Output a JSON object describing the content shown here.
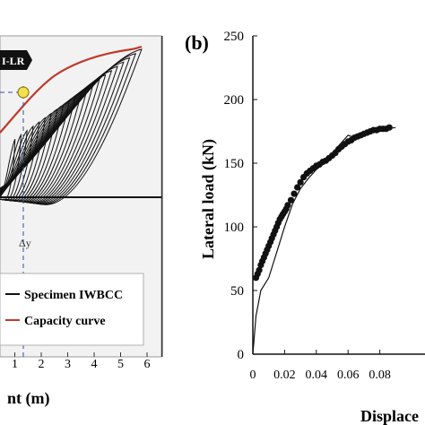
{
  "panel_a": {
    "badge": "I-LR",
    "delta_label": "Δy",
    "x_ticks": [
      "1",
      "2",
      "3",
      "4",
      "5",
      "6"
    ],
    "x_label_fragment": "nt (m)",
    "legend": [
      "Specimen IWBCC",
      "Capacity curve"
    ],
    "colors": {
      "specimen": "#111111",
      "capacity": "#c0392b",
      "marker": "#f4e04d",
      "guide": "#2b4fa8",
      "panel_bg": "#f2f2f2"
    }
  },
  "panel_b": {
    "label": "(b)",
    "ylabel": "Lateral load (kN)",
    "xlabel_fragment": "Displace",
    "y_ticks": [
      "0",
      "50",
      "100",
      "150",
      "200",
      "250"
    ],
    "x_ticks": [
      "0",
      "0.02",
      "0.04",
      "0.06",
      "0.08"
    ]
  },
  "chart_data": [
    {
      "type": "line",
      "title": "",
      "xlabel": "nt (m)",
      "x_ticks": [
        1,
        2,
        3,
        4,
        5,
        6
      ],
      "xlim": [
        0,
        6
      ],
      "series": [
        {
          "name": "Specimen IWBCC",
          "kind": "hysteresis loops"
        },
        {
          "name": "Capacity curve",
          "kind": "envelope"
        }
      ]
    },
    {
      "type": "scatter",
      "title": "",
      "xlabel": "Displace",
      "ylabel": "Lateral load (kN)",
      "xlim": [
        0,
        0.1
      ],
      "ylim": [
        0,
        250
      ],
      "y_ticks": [
        0,
        50,
        100,
        150,
        200,
        250
      ],
      "series": [
        {
          "kind": "markers",
          "x": [
            0.002,
            0.003,
            0.004,
            0.005,
            0.006,
            0.007,
            0.008,
            0.009,
            0.01,
            0.011,
            0.012,
            0.013,
            0.014,
            0.015,
            0.016,
            0.017,
            0.018,
            0.019,
            0.02,
            0.021,
            0.022,
            0.024,
            0.026,
            0.028,
            0.03,
            0.032,
            0.034,
            0.036,
            0.038,
            0.04,
            0.042,
            0.044,
            0.046,
            0.048,
            0.05,
            0.052,
            0.054,
            0.056,
            0.058,
            0.06,
            0.062,
            0.064,
            0.066,
            0.068,
            0.07,
            0.072,
            0.074,
            0.076,
            0.078,
            0.08,
            0.082,
            0.084,
            0.086
          ],
          "y": [
            60,
            63,
            66,
            70,
            73,
            76,
            79,
            82,
            85,
            88,
            91,
            94,
            97,
            100,
            103,
            106,
            108,
            110,
            112,
            114,
            117,
            121,
            126,
            131,
            135,
            139,
            142,
            144,
            146,
            148,
            149,
            151,
            152,
            154,
            156,
            158,
            161,
            163,
            165,
            167,
            168,
            170,
            171,
            172,
            173,
            174,
            175,
            176,
            176,
            177,
            177,
            177,
            178
          ]
        },
        {
          "kind": "line",
          "x": [
            0,
            0.002,
            0.005,
            0.01,
            0.015,
            0.02,
            0.025,
            0.03,
            0.035,
            0.04,
            0.045,
            0.05,
            0.055,
            0.06,
            0.062,
            0.064,
            0.066,
            0.07,
            0.075,
            0.08,
            0.085,
            0.09
          ],
          "y": [
            0,
            30,
            50,
            60,
            80,
            100,
            118,
            130,
            138,
            145,
            150,
            158,
            165,
            172,
            171,
            169,
            170,
            172,
            174,
            176,
            177,
            178
          ]
        }
      ]
    }
  ]
}
